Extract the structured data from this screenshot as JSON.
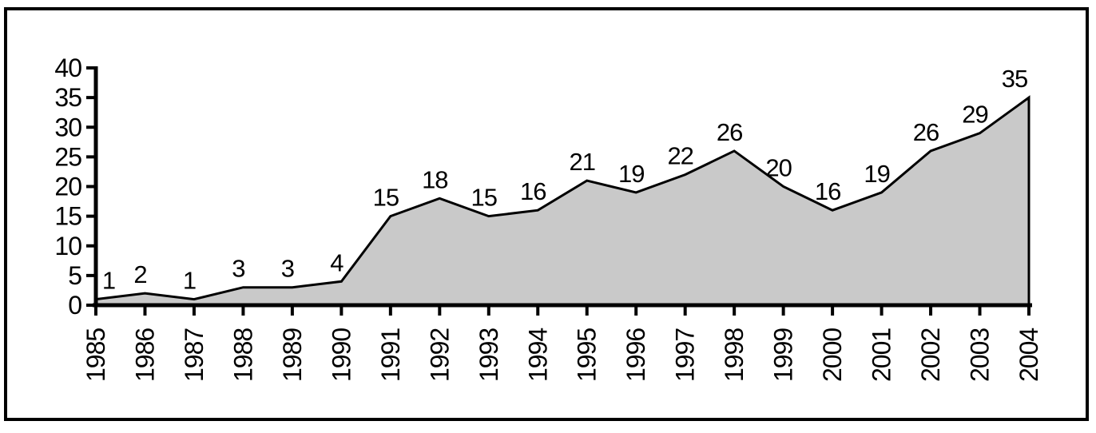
{
  "chart_data": {
    "type": "area",
    "title": "",
    "xlabel": "",
    "ylabel": "",
    "categories": [
      "1985",
      "1986",
      "1987",
      "1988",
      "1989",
      "1990",
      "1991",
      "1992",
      "1993",
      "1994",
      "1995",
      "1996",
      "1997",
      "1998",
      "1999",
      "2000",
      "2001",
      "2002",
      "2003",
      "2004"
    ],
    "values": [
      1,
      2,
      1,
      3,
      3,
      4,
      15,
      18,
      15,
      16,
      21,
      19,
      22,
      26,
      20,
      16,
      19,
      26,
      29,
      35
    ],
    "ylim": [
      0,
      40
    ],
    "ytick_step": 5,
    "ytick_labels": [
      "0",
      "5",
      "10",
      "15",
      "20",
      "25",
      "30",
      "35",
      "40"
    ],
    "grid": false,
    "legend": "none",
    "data_labels_shown": true,
    "x_labels_rotation_deg": -90,
    "fill_color": "#c9c9c9",
    "line_color": "#000000",
    "axis_color": "#000000",
    "background_color": "#ffffff"
  }
}
